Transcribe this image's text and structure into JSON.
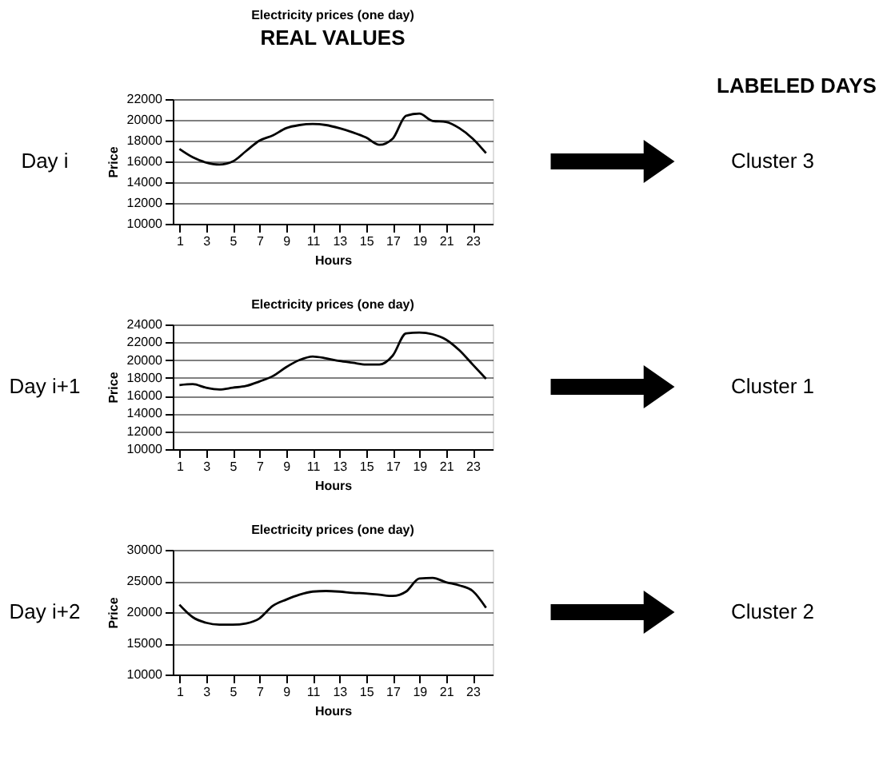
{
  "chart_data": [
    {
      "type": "line",
      "title": "Electricity prices (one day)",
      "xlabel": "Hours",
      "ylabel": "Price",
      "color": "#000000",
      "x": [
        1,
        2,
        3,
        4,
        5,
        6,
        7,
        8,
        9,
        10,
        11,
        12,
        13,
        14,
        15,
        16,
        17,
        18,
        19,
        20,
        21,
        22,
        23,
        24
      ],
      "values": [
        17200,
        16400,
        15900,
        15700,
        16000,
        17000,
        18000,
        18500,
        19200,
        19500,
        19600,
        19500,
        19200,
        18800,
        18300,
        17600,
        18200,
        20400,
        20600,
        19900,
        19800,
        19200,
        18200,
        16800
      ],
      "xlim": [
        0.5,
        24.5
      ],
      "xticks": [
        1,
        3,
        5,
        7,
        9,
        11,
        13,
        15,
        17,
        19,
        21,
        23
      ],
      "ylim": [
        10000,
        22000
      ],
      "yticks": [
        10000,
        12000,
        14000,
        16000,
        18000,
        20000,
        22000
      ],
      "grid": "y",
      "annotations": [
        "Day i",
        "Cluster 3",
        "REAL VALUES",
        "LABELED DAYS"
      ]
    },
    {
      "type": "line",
      "title": "Electricity prices (one day)",
      "xlabel": "Hours",
      "ylabel": "Price",
      "color": "#000000",
      "x": [
        1,
        2,
        3,
        4,
        5,
        6,
        7,
        8,
        9,
        10,
        11,
        12,
        13,
        14,
        15,
        16,
        17,
        18,
        19,
        20,
        21,
        22,
        23,
        24
      ],
      "values": [
        17200,
        17300,
        16900,
        16700,
        16900,
        17100,
        17600,
        18200,
        19200,
        20000,
        20400,
        20200,
        19900,
        19700,
        19500,
        19500,
        20500,
        23000,
        23100,
        22900,
        22300,
        21100,
        19500,
        17900
      ],
      "xlim": [
        0.5,
        24.5
      ],
      "xticks": [
        1,
        3,
        5,
        7,
        9,
        11,
        13,
        15,
        17,
        19,
        21,
        23
      ],
      "ylim": [
        10000,
        24000
      ],
      "yticks": [
        10000,
        12000,
        14000,
        16000,
        18000,
        20000,
        22000,
        24000
      ],
      "grid": "y",
      "annotations": [
        "Day i+1",
        "Cluster 1"
      ]
    },
    {
      "type": "line",
      "title": "Electricity prices (one day)",
      "xlabel": "Hours",
      "ylabel": "Price",
      "color": "#000000",
      "x": [
        1,
        2,
        3,
        4,
        5,
        6,
        7,
        8,
        9,
        10,
        11,
        12,
        13,
        14,
        15,
        16,
        17,
        18,
        19,
        20,
        21,
        22,
        23,
        24
      ],
      "values": [
        21200,
        19200,
        18300,
        18000,
        18000,
        18200,
        19000,
        21000,
        22000,
        22800,
        23300,
        23400,
        23300,
        23100,
        23000,
        22800,
        22600,
        23300,
        25400,
        25500,
        24800,
        24300,
        23400,
        20700
      ],
      "xlim": [
        0.5,
        24.5
      ],
      "xticks": [
        1,
        3,
        5,
        7,
        9,
        11,
        13,
        15,
        17,
        19,
        21,
        23
      ],
      "ylim": [
        10000,
        30000
      ],
      "yticks": [
        10000,
        15000,
        20000,
        25000,
        30000
      ],
      "grid": "y",
      "annotations": [
        "Day i+2",
        "Cluster 2"
      ]
    }
  ]
}
